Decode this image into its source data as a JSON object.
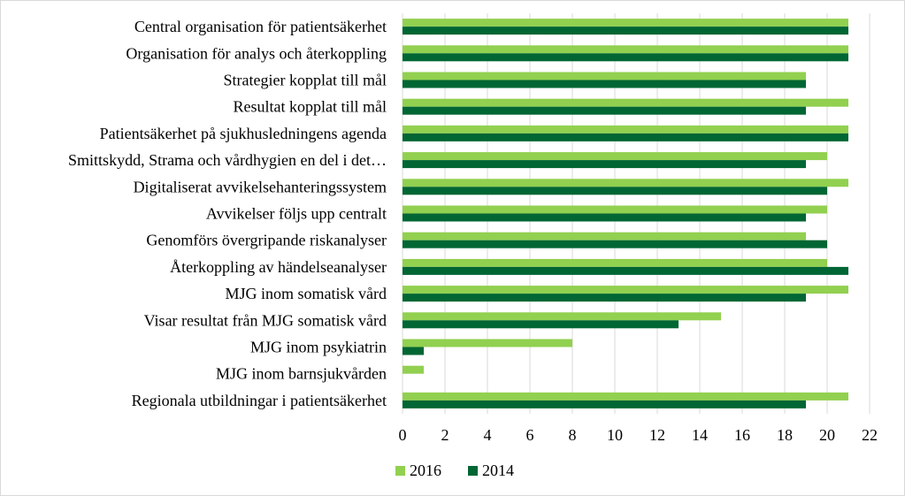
{
  "chart_data": {
    "type": "bar",
    "orientation": "horizontal",
    "categories": [
      "Central organisation för patientsäkerhet",
      "Organisation för analys och återkoppling",
      "Strategier kopplat till mål",
      "Resultat kopplat till mål",
      "Patientsäkerhet på sjukhusledningens agenda",
      "Smittskydd, Strama och vårdhygien en del i det…",
      "Digitaliserat avvikelsehanteringssystem",
      "Avvikelser följs upp centralt",
      "Genomförs övergripande riskanalyser",
      "Återkoppling av händelseanalyser",
      "MJG inom somatisk vård",
      "Visar resultat från MJG somatisk vård",
      "MJG inom psykiatrin",
      "MJG inom barnsjukvården",
      "Regionala utbildningar i patientsäkerhet"
    ],
    "series": [
      {
        "name": "2016",
        "color": "#92d050",
        "values": [
          21,
          21,
          19,
          21,
          21,
          20,
          21,
          20,
          19,
          20,
          21,
          15,
          8,
          1,
          21
        ]
      },
      {
        "name": "2014",
        "color": "#006633",
        "values": [
          21,
          21,
          19,
          19,
          21,
          19,
          20,
          19,
          20,
          21,
          19,
          13,
          1,
          0,
          19
        ]
      }
    ],
    "xlim": [
      0,
      22
    ],
    "xticks": [
      "0",
      "2",
      "4",
      "6",
      "8",
      "10",
      "12",
      "14",
      "16",
      "18",
      "20",
      "22"
    ],
    "grid": true,
    "legend": "bottom"
  }
}
